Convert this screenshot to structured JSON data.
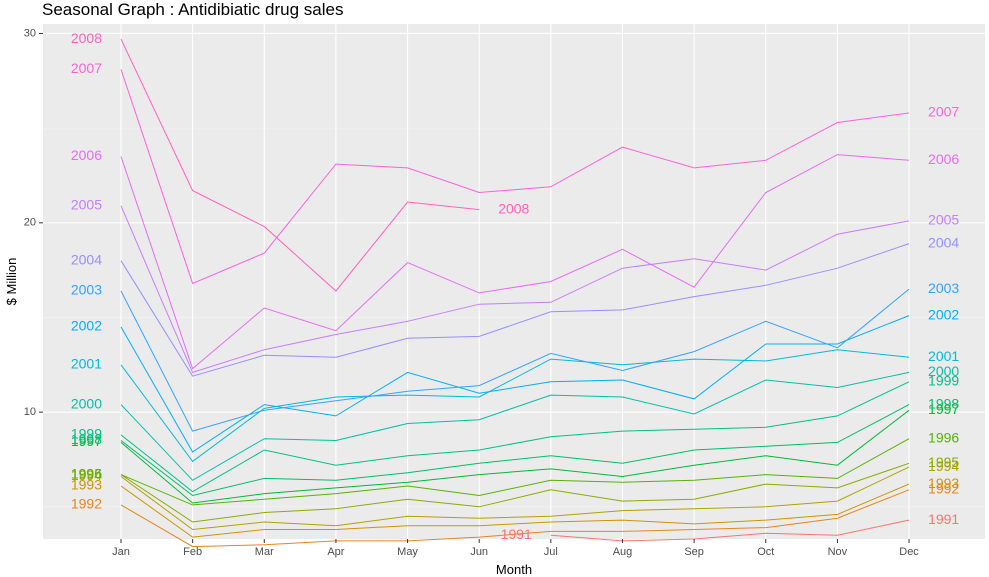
{
  "chart_data": {
    "type": "line",
    "title": "Seasonal Graph : Antidibiatic drug sales",
    "xlabel": "Month",
    "ylabel": "$ Million",
    "categories": [
      "Jan",
      "Feb",
      "Mar",
      "Apr",
      "May",
      "Jun",
      "Jul",
      "Aug",
      "Sep",
      "Oct",
      "Nov",
      "Dec"
    ],
    "ylim": [
      3.3,
      30.5
    ],
    "yticks": [
      10,
      20,
      30
    ],
    "grid": true,
    "legend": "none",
    "series": [
      {
        "name": "1991",
        "color": "#F8766D",
        "values": [
          null,
          null,
          null,
          null,
          null,
          null,
          3.5,
          3.2,
          3.3,
          3.6,
          3.5,
          4.3
        ]
      },
      {
        "name": "1992",
        "color": "#E7851E",
        "values": [
          5.1,
          2.9,
          3.0,
          3.2,
          3.2,
          3.4,
          3.7,
          3.7,
          3.8,
          3.9,
          4.4,
          5.9
        ]
      },
      {
        "name": "1993",
        "color": "#D09400",
        "values": [
          6.1,
          3.4,
          3.8,
          3.8,
          4.0,
          4.0,
          4.2,
          4.3,
          4.1,
          4.3,
          4.6,
          6.2
        ]
      },
      {
        "name": "1994",
        "color": "#B2A100",
        "values": [
          6.6,
          3.8,
          4.2,
          4.0,
          4.5,
          4.4,
          4.5,
          4.8,
          4.9,
          5.0,
          5.3,
          7.1
        ]
      },
      {
        "name": "1995",
        "color": "#8BAB00",
        "values": [
          6.7,
          4.2,
          4.7,
          4.9,
          5.4,
          5.0,
          5.9,
          5.3,
          5.4,
          6.2,
          6.0,
          7.3
        ]
      },
      {
        "name": "1996",
        "color": "#55B400",
        "values": [
          6.7,
          5.1,
          5.4,
          5.7,
          6.1,
          5.6,
          6.4,
          6.3,
          6.4,
          6.7,
          6.5,
          8.6
        ]
      },
      {
        "name": "1997",
        "color": "#00BA38",
        "values": [
          8.4,
          5.2,
          5.7,
          6.0,
          6.3,
          6.7,
          7.0,
          6.6,
          7.2,
          7.7,
          7.2,
          10.1
        ]
      },
      {
        "name": "1998",
        "color": "#00BE6C",
        "values": [
          8.5,
          5.6,
          6.5,
          6.4,
          6.8,
          7.3,
          7.7,
          7.3,
          8.0,
          8.2,
          8.4,
          10.4
        ]
      },
      {
        "name": "1999",
        "color": "#00C08B",
        "values": [
          8.8,
          5.8,
          8.0,
          7.2,
          7.7,
          8.0,
          8.7,
          9.0,
          9.1,
          9.2,
          9.8,
          11.6
        ]
      },
      {
        "name": "2000",
        "color": "#00C1A9",
        "values": [
          10.4,
          6.4,
          8.6,
          8.5,
          9.4,
          9.6,
          10.9,
          10.8,
          9.9,
          11.7,
          11.3,
          12.1
        ]
      },
      {
        "name": "2001",
        "color": "#00BCD8",
        "values": [
          12.5,
          7.4,
          10.2,
          10.8,
          10.9,
          10.8,
          12.8,
          12.5,
          12.8,
          12.7,
          13.3,
          12.9
        ]
      },
      {
        "name": "2002",
        "color": "#00B0F6",
        "values": [
          14.5,
          7.9,
          10.4,
          9.8,
          12.1,
          11.0,
          11.6,
          11.7,
          10.7,
          13.6,
          13.6,
          15.1
        ]
      },
      {
        "name": "2003",
        "color": "#35A2FF",
        "values": [
          16.4,
          9.0,
          10.1,
          10.6,
          11.1,
          11.4,
          13.1,
          12.2,
          13.2,
          14.8,
          13.4,
          16.5
        ]
      },
      {
        "name": "2004",
        "color": "#9590FF",
        "values": [
          18.0,
          11.9,
          13.0,
          12.9,
          13.9,
          14.0,
          15.3,
          15.4,
          16.1,
          16.7,
          17.6,
          18.9
        ]
      },
      {
        "name": "2005",
        "color": "#C77CFF",
        "values": [
          20.9,
          12.1,
          13.3,
          14.1,
          14.8,
          15.7,
          15.8,
          17.6,
          18.1,
          17.5,
          19.4,
          20.1
        ]
      },
      {
        "name": "2006",
        "color": "#E76BF3",
        "values": [
          23.5,
          12.3,
          15.5,
          14.3,
          17.9,
          16.3,
          16.9,
          18.6,
          16.6,
          21.6,
          23.6,
          23.3
        ]
      },
      {
        "name": "2007",
        "color": "#FA62DB",
        "values": [
          28.1,
          16.8,
          18.4,
          23.1,
          22.9,
          21.6,
          21.9,
          24.0,
          22.9,
          23.3,
          25.3,
          25.8
        ]
      },
      {
        "name": "2008",
        "color": "#FF62BC",
        "values": [
          29.7,
          21.7,
          19.8,
          16.4,
          21.1,
          20.7,
          null,
          null,
          null,
          null,
          null,
          null
        ]
      }
    ],
    "start_labels": [
      "1992",
      "1993",
      "1994",
      "1995",
      "1996",
      "1997",
      "1998",
      "1999",
      "2000",
      "2001",
      "2002",
      "2003",
      "2004",
      "2005",
      "2006",
      "2007",
      "2008"
    ],
    "end_labels": [
      "1991",
      "1992",
      "1993",
      "1994",
      "1995",
      "1996",
      "1997",
      "1998",
      "1999",
      "2000",
      "2001",
      "2002",
      "2003",
      "2004",
      "2005",
      "2006",
      "2007"
    ],
    "inline_labels": [
      "1991",
      "2008"
    ]
  }
}
